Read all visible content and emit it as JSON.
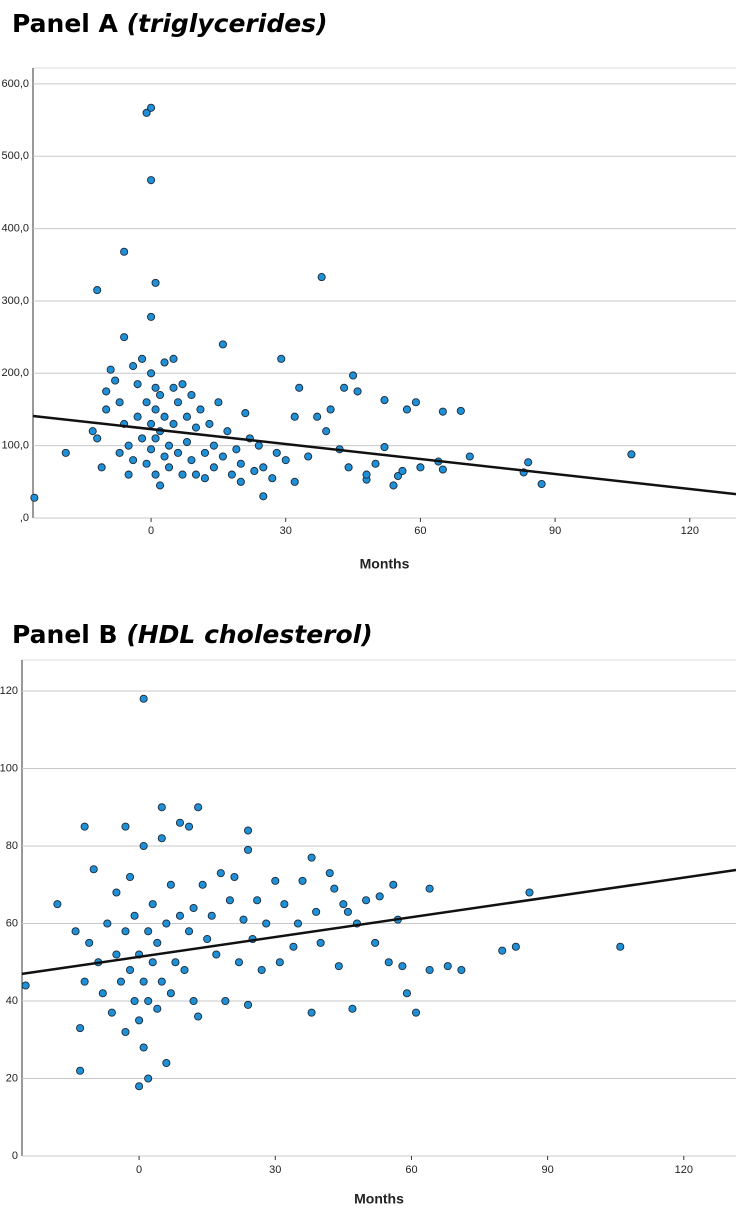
{
  "chart_data": [
    {
      "type": "scatter",
      "title": "Panel A",
      "subtitle": "(triglycerides)",
      "x_label": "Months",
      "color": "#1f8fd6",
      "grid": true,
      "trend_color": "#111111",
      "xlim": [
        -26.3,
        130.3
      ],
      "ylim": [
        0,
        622
      ],
      "xticks": [
        0,
        30,
        60,
        90,
        120
      ],
      "yticks": [
        {
          "value": 0,
          "label": ",0"
        },
        {
          "value": 100,
          "label": "100,0"
        },
        {
          "value": 200,
          "label": "200,0"
        },
        {
          "value": 300,
          "label": "300,0"
        },
        {
          "value": 400,
          "label": "400,0"
        },
        {
          "value": 500,
          "label": "500,0"
        },
        {
          "value": 600,
          "label": "600,0"
        }
      ],
      "trend": {
        "x": [
          -26.3,
          130.3
        ],
        "y": [
          141,
          33
        ]
      },
      "x": [
        -26,
        -19,
        -12,
        -6,
        -1,
        0,
        0,
        1,
        0,
        16,
        38,
        29,
        45,
        52,
        57,
        59,
        65,
        69,
        71,
        83,
        84,
        87,
        107,
        64,
        65,
        60,
        55,
        52,
        48,
        -13,
        -12,
        -11,
        -10,
        -10,
        -9,
        -8,
        -7,
        -7,
        -6,
        -6,
        -5,
        -5,
        -4,
        -4,
        -3,
        -3,
        -2,
        -2,
        -1,
        -1,
        0,
        0,
        0,
        1,
        1,
        1,
        1,
        2,
        2,
        2,
        3,
        3,
        3,
        4,
        4,
        5,
        5,
        5,
        6,
        6,
        7,
        7,
        8,
        8,
        9,
        9,
        10,
        10,
        11,
        12,
        12,
        13,
        14,
        14,
        15,
        16,
        17,
        18,
        19,
        20,
        20,
        21,
        22,
        23,
        24,
        25,
        25,
        27,
        28,
        30,
        32,
        32,
        33,
        35,
        37,
        39,
        40,
        42,
        43,
        44,
        46,
        48,
        50,
        54,
        56
      ],
      "y": [
        28,
        90,
        315,
        368,
        560,
        567,
        467,
        325,
        278,
        240,
        333,
        220,
        197,
        163,
        150,
        160,
        147,
        148,
        85,
        63,
        77,
        47,
        88,
        78,
        67,
        70,
        58,
        98,
        53,
        120,
        110,
        70,
        150,
        175,
        205,
        190,
        160,
        90,
        250,
        130,
        100,
        60,
        210,
        80,
        185,
        140,
        220,
        110,
        75,
        160,
        200,
        130,
        95,
        180,
        150,
        110,
        60,
        170,
        120,
        45,
        215,
        140,
        85,
        100,
        70,
        180,
        130,
        220,
        160,
        90,
        185,
        60,
        140,
        105,
        170,
        80,
        125,
        60,
        150,
        90,
        55,
        130,
        100,
        70,
        160,
        85,
        120,
        60,
        95,
        75,
        50,
        145,
        110,
        65,
        100,
        30,
        70,
        55,
        90,
        80,
        140,
        50,
        180,
        85,
        140,
        120,
        150,
        95,
        180,
        70,
        175,
        60,
        75,
        45,
        65
      ]
    },
    {
      "type": "scatter",
      "title": "Panel B",
      "subtitle": "(HDL cholesterol)",
      "x_label": "Months",
      "color": "#1f8fd6",
      "grid": true,
      "trend_color": "#111111",
      "xlim": [
        -25.8,
        131.5
      ],
      "ylim": [
        0,
        128
      ],
      "xticks": [
        0,
        30,
        60,
        90,
        120
      ],
      "yticks": [
        0,
        20,
        40,
        60,
        80,
        100,
        120
      ],
      "trend": {
        "x": [
          -25.8,
          131.5
        ],
        "y": [
          47,
          73.8
        ]
      },
      "x": [
        -25,
        -18,
        -13,
        -12,
        -3,
        0,
        1,
        2,
        5,
        13,
        24,
        38,
        106,
        86,
        83,
        80,
        71,
        68,
        64,
        64,
        61,
        59,
        58,
        56,
        52,
        47,
        38,
        24,
        -14,
        -13,
        -12,
        -11,
        -10,
        -9,
        -8,
        -7,
        -6,
        -5,
        -5,
        -4,
        -3,
        -3,
        -2,
        -2,
        -1,
        -1,
        0,
        0,
        1,
        1,
        1,
        2,
        2,
        3,
        3,
        4,
        4,
        5,
        5,
        6,
        6,
        7,
        7,
        8,
        9,
        9,
        10,
        11,
        11,
        12,
        12,
        13,
        14,
        15,
        16,
        17,
        18,
        19,
        20,
        21,
        22,
        23,
        24,
        25,
        26,
        27,
        28,
        30,
        31,
        32,
        34,
        35,
        36,
        39,
        40,
        42,
        43,
        44,
        45,
        46,
        48,
        50,
        53,
        55,
        57
      ],
      "y": [
        44,
        65,
        22,
        85,
        85,
        18,
        118,
        20,
        90,
        90,
        84,
        77,
        54,
        68,
        54,
        53,
        48,
        49,
        48,
        69,
        37,
        42,
        49,
        70,
        55,
        38,
        37,
        39,
        58,
        33,
        45,
        55,
        74,
        50,
        42,
        60,
        37,
        52,
        68,
        45,
        58,
        32,
        72,
        48,
        40,
        62,
        52,
        35,
        80,
        45,
        28,
        58,
        40,
        65,
        50,
        38,
        55,
        82,
        45,
        24,
        60,
        70,
        42,
        50,
        86,
        62,
        48,
        85,
        58,
        64,
        40,
        36,
        70,
        56,
        62,
        52,
        73,
        40,
        66,
        72,
        50,
        61,
        79,
        56,
        66,
        48,
        60,
        71,
        50,
        65,
        54,
        60,
        71,
        63,
        55,
        73,
        69,
        49,
        65,
        63,
        60,
        66,
        67,
        50,
        61
      ]
    }
  ]
}
